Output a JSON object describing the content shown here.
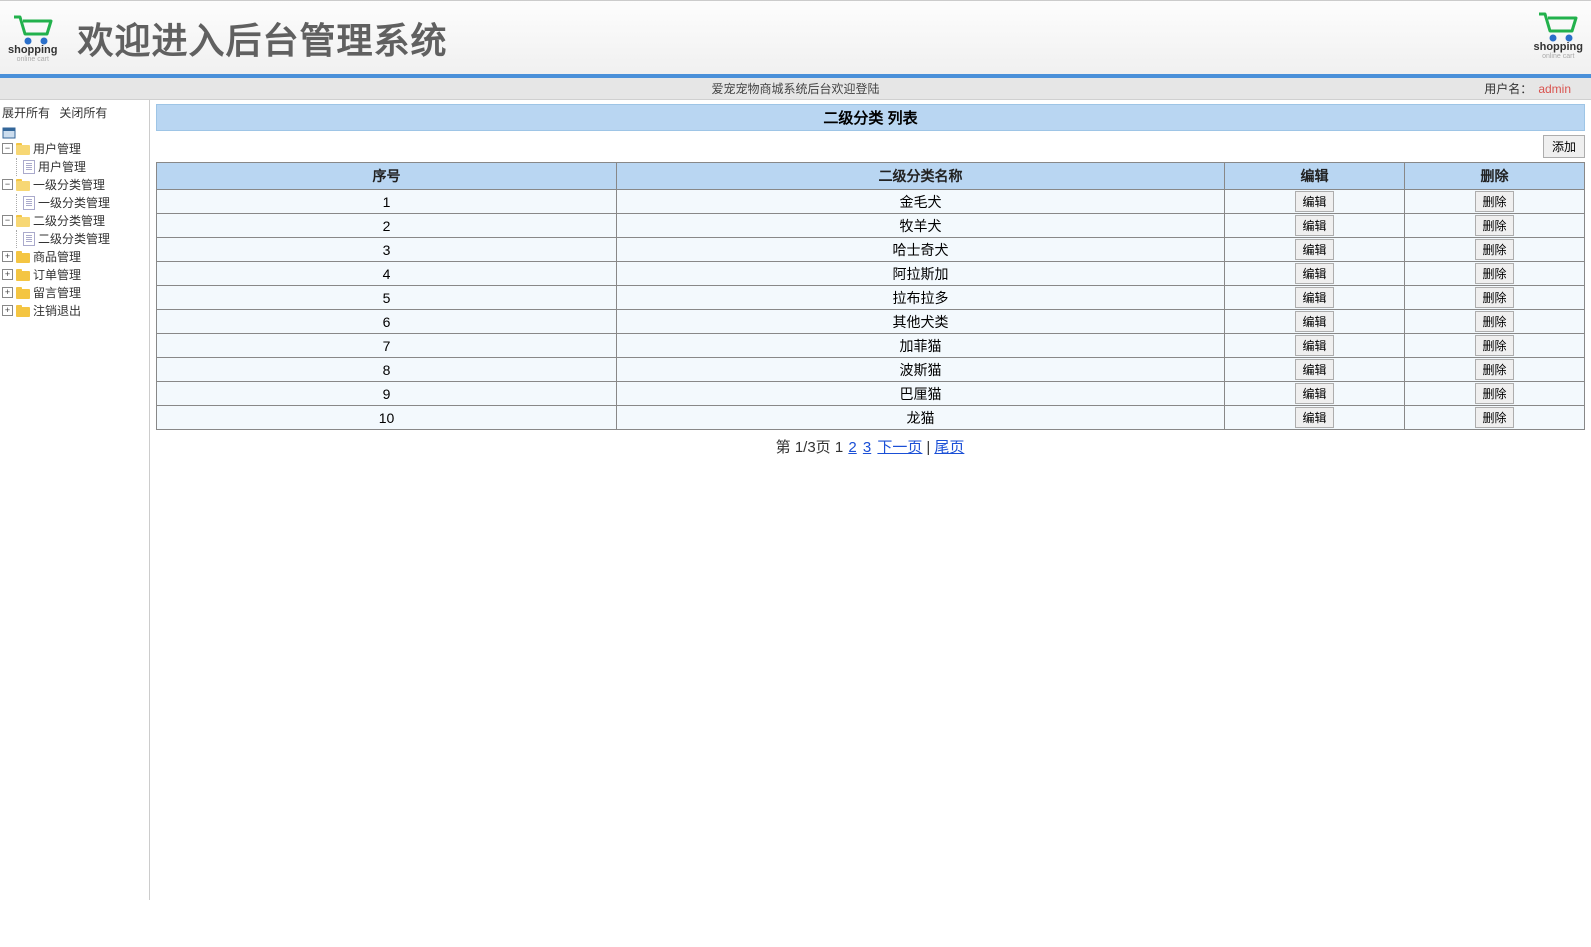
{
  "header": {
    "title": "欢迎进入后台管理系统",
    "logo_text1": "shopping",
    "logo_text2": "online cart"
  },
  "status": {
    "center": "爱宠宠物商城系统后台欢迎登陆",
    "user_label": "用户名：",
    "username": "admin"
  },
  "sidebar": {
    "expand_all": "展开所有",
    "collapse_all": "关闭所有",
    "nodes": [
      {
        "label": "用户管理",
        "state": "open",
        "children": [
          {
            "label": "用户管理",
            "type": "doc"
          }
        ]
      },
      {
        "label": "一级分类管理",
        "state": "open",
        "children": [
          {
            "label": "一级分类管理",
            "type": "doc"
          }
        ]
      },
      {
        "label": "二级分类管理",
        "state": "open",
        "children": [
          {
            "label": "二级分类管理",
            "type": "doc"
          }
        ]
      },
      {
        "label": "商品管理",
        "state": "closed"
      },
      {
        "label": "订单管理",
        "state": "closed"
      },
      {
        "label": "留言管理",
        "state": "closed"
      },
      {
        "label": "注销退出",
        "state": "closed"
      }
    ]
  },
  "main": {
    "list_title": "二级分类 列表",
    "add_label": "添加",
    "columns": {
      "no": "序号",
      "name": "二级分类名称",
      "edit": "编辑",
      "del": "删除"
    },
    "edit_btn": "编辑",
    "del_btn": "删除",
    "rows": [
      {
        "no": "1",
        "name": "金毛犬"
      },
      {
        "no": "2",
        "name": "牧羊犬"
      },
      {
        "no": "3",
        "name": "哈士奇犬"
      },
      {
        "no": "4",
        "name": "阿拉斯加"
      },
      {
        "no": "5",
        "name": "拉布拉多"
      },
      {
        "no": "6",
        "name": "其他犬类"
      },
      {
        "no": "7",
        "name": "加菲猫"
      },
      {
        "no": "8",
        "name": "波斯猫"
      },
      {
        "no": "9",
        "name": "巴厘猫"
      },
      {
        "no": "10",
        "name": "龙猫"
      }
    ],
    "pagination": {
      "prefix": "第 ",
      "page_info": "1/3页 ",
      "current": "1",
      "page2": "2",
      "page3": "3",
      "next": "下一页",
      "last": "尾页"
    }
  }
}
